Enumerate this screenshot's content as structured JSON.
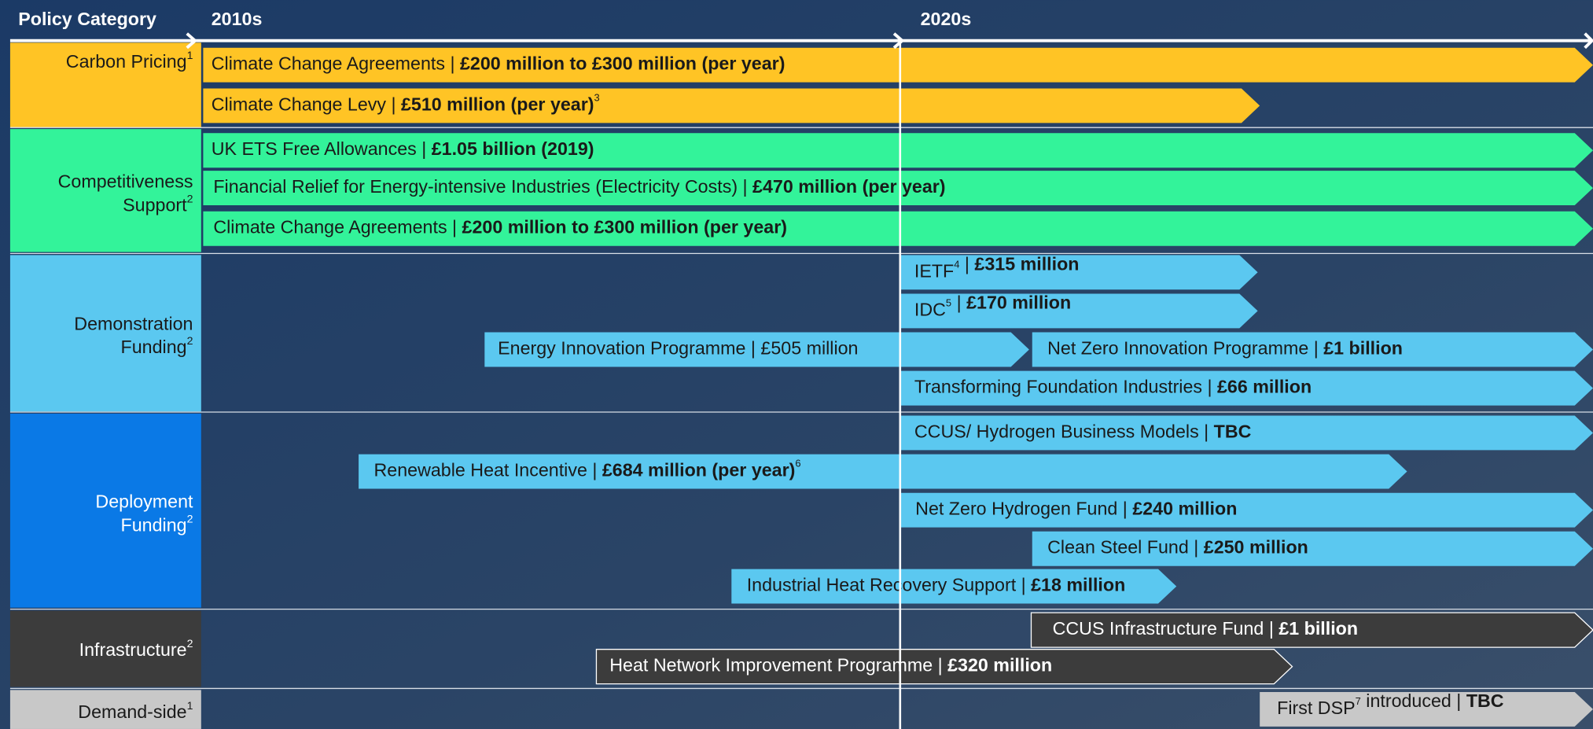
{
  "header": {
    "category_title": "Policy Category",
    "decades": [
      "2010s",
      "2020s"
    ]
  },
  "categories": [
    {
      "lines": [
        "Carbon Pricing"
      ],
      "note": "1"
    },
    {
      "lines": [
        "Competitiveness",
        "Support"
      ],
      "note": "2"
    },
    {
      "lines": [
        "Demonstration",
        "Funding"
      ],
      "note": "2"
    },
    {
      "lines": [
        "Deployment",
        "Funding"
      ],
      "note": "2"
    },
    {
      "lines": [
        "Infrastructure"
      ],
      "note": "2"
    },
    {
      "lines": [
        "Demand-side"
      ],
      "note": "1"
    }
  ],
  "bars": [
    {
      "parts": [
        {
          "text": "Climate Change Agreements | "
        },
        {
          "bold": "£200 million to £300 million (per year)"
        }
      ]
    },
    {
      "parts": [
        {
          "text": "Climate Change Levy | "
        },
        {
          "bold": "£510 million (per year)"
        },
        {
          "sup": "3"
        }
      ]
    },
    {
      "parts": [
        {
          "text": "UK ETS Free Allowances | "
        },
        {
          "bold": "£1.05 billion (2019)"
        }
      ]
    },
    {
      "parts": [
        {
          "text": "Financial Relief for Energy-intensive Industries (Electricity Costs) | "
        },
        {
          "bold": "£470 million (per year)"
        }
      ]
    },
    {
      "parts": [
        {
          "text": "Climate Change Agreements | "
        },
        {
          "bold": "£200 million to £300 million (per year)"
        }
      ]
    },
    {
      "parts": [
        {
          "text": "IETF"
        },
        {
          "sup": "4"
        },
        {
          "text": " | "
        },
        {
          "bold": "£315 million"
        }
      ]
    },
    {
      "parts": [
        {
          "text": "IDC"
        },
        {
          "sup": "5"
        },
        {
          "text": " | "
        },
        {
          "bold": "£170 million"
        }
      ]
    },
    {
      "parts": [
        {
          "text": "Energy Innovation Programme | £505 million"
        }
      ]
    },
    {
      "parts": [
        {
          "text": "Net Zero Innovation Programme | "
        },
        {
          "bold": "£1 billion"
        }
      ]
    },
    {
      "parts": [
        {
          "text": "Transforming Foundation Industries | "
        },
        {
          "bold": "£66 million"
        }
      ]
    },
    {
      "parts": [
        {
          "text": "CCUS/ Hydrogen Business Models | "
        },
        {
          "bold": "TBC"
        }
      ]
    },
    {
      "parts": [
        {
          "text": "Renewable Heat Incentive | "
        },
        {
          "bold": "£684 million (per year)"
        },
        {
          "sup": "6"
        }
      ]
    },
    {
      "parts": [
        {
          "text": "Net Zero Hydrogen Fund | "
        },
        {
          "bold": "£240 million"
        }
      ]
    },
    {
      "parts": [
        {
          "text": "Clean Steel Fund | "
        },
        {
          "bold": "£250 million"
        }
      ]
    },
    {
      "parts": [
        {
          "text": "Industrial Heat Recovery Support | "
        },
        {
          "bold": "£18 million"
        }
      ]
    },
    {
      "parts": [
        {
          "text": "CCUS Infrastructure Fund | "
        },
        {
          "bold": "£1 billion"
        }
      ]
    },
    {
      "parts": [
        {
          "text": "Heat Network Improvement Programme | "
        },
        {
          "bold": "£320 million"
        }
      ]
    },
    {
      "parts": [
        {
          "text": "First DSP"
        },
        {
          "sup": "7"
        },
        {
          "text": " introduced | "
        },
        {
          "bold": "TBC"
        }
      ]
    }
  ]
}
